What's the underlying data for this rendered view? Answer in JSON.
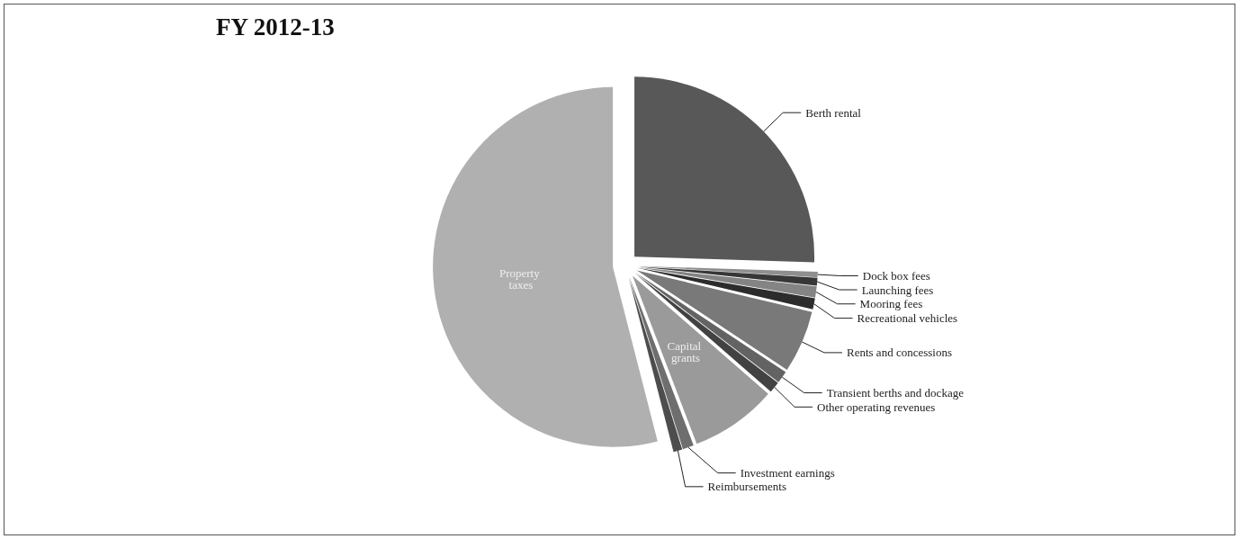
{
  "chart_data": {
    "type": "pie",
    "title": "FY 2012-13",
    "categories": [
      "Berth rental",
      "Dock box fees",
      "Launching fees",
      "Mooring fees",
      "Recreational vehicles",
      "Rents and concessions",
      "Transient berths and dockage",
      "Other operating revenues",
      "Capital grants",
      "Investment earnings",
      "Reimbursements",
      "Property taxes"
    ],
    "values": [
      25.5,
      0.5,
      0.7,
      1.0,
      1.0,
      5.6,
      1.1,
      1.0,
      7.8,
      1.0,
      0.8,
      54.0
    ],
    "colors": [
      "#585858",
      "#8f8f8f",
      "#373737",
      "#848484",
      "#2c2c2c",
      "#797979",
      "#636363",
      "#424242",
      "#9a9a9a",
      "#6e6e6e",
      "#4d4d4d",
      "#b0b0b0"
    ],
    "legend": false
  }
}
